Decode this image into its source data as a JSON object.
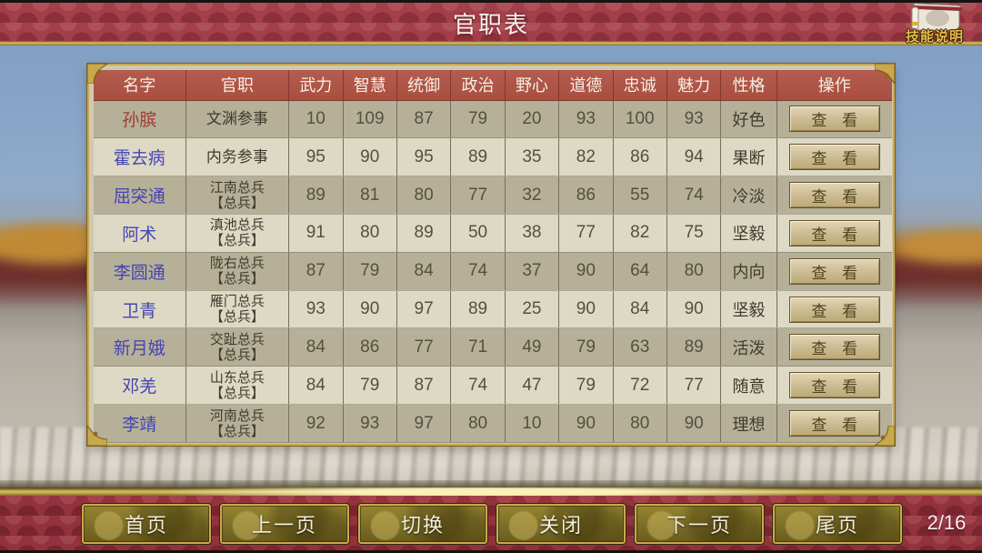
{
  "title_bar": {
    "title": "官职表",
    "skill_button_label": "技能说明"
  },
  "table": {
    "headers": [
      "名字",
      "官职",
      "武力",
      "智慧",
      "统御",
      "政治",
      "野心",
      "道德",
      "忠诚",
      "魅力",
      "性格",
      "操作"
    ],
    "view_button_label": "查 看",
    "rows": [
      {
        "name": "孙膑",
        "name_color": "#a23a32",
        "position": [
          "文渊参事"
        ],
        "stats": [
          10,
          109,
          87,
          79,
          20,
          93,
          100,
          93
        ],
        "personality": "好色"
      },
      {
        "name": "霍去病",
        "name_color": "#4545b2",
        "position": [
          "内务参事"
        ],
        "stats": [
          95,
          90,
          95,
          89,
          35,
          82,
          86,
          94
        ],
        "personality": "果断"
      },
      {
        "name": "屈突通",
        "name_color": "#4545b2",
        "position": [
          "江南总兵",
          "【总兵】"
        ],
        "stats": [
          89,
          81,
          80,
          77,
          32,
          86,
          55,
          74
        ],
        "personality": "冷淡"
      },
      {
        "name": "阿术",
        "name_color": "#4545b2",
        "position": [
          "滇池总兵",
          "【总兵】"
        ],
        "stats": [
          91,
          80,
          89,
          50,
          38,
          77,
          82,
          75
        ],
        "personality": "坚毅"
      },
      {
        "name": "李圆通",
        "name_color": "#4545b2",
        "position": [
          "陇右总兵",
          "【总兵】"
        ],
        "stats": [
          87,
          79,
          84,
          74,
          37,
          90,
          64,
          80
        ],
        "personality": "内向"
      },
      {
        "name": "卫青",
        "name_color": "#4545b2",
        "position": [
          "雁门总兵",
          "【总兵】"
        ],
        "stats": [
          93,
          90,
          97,
          89,
          25,
          90,
          84,
          90
        ],
        "personality": "坚毅"
      },
      {
        "name": "新月娥",
        "name_color": "#4545b2",
        "position": [
          "交趾总兵",
          "【总兵】"
        ],
        "stats": [
          84,
          86,
          77,
          71,
          49,
          79,
          63,
          89
        ],
        "personality": "活泼"
      },
      {
        "name": "邓羌",
        "name_color": "#4545b2",
        "position": [
          "山东总兵",
          "【总兵】"
        ],
        "stats": [
          84,
          79,
          87,
          74,
          47,
          79,
          72,
          77
        ],
        "personality": "随意"
      },
      {
        "name": "李靖",
        "name_color": "#4545b2",
        "position": [
          "河南总兵",
          "【总兵】"
        ],
        "stats": [
          92,
          93,
          97,
          80,
          10,
          90,
          80,
          90
        ],
        "personality": "理想"
      }
    ]
  },
  "footer": {
    "buttons": [
      "首页",
      "上一页",
      "切换",
      "关闭",
      "下一页",
      "尾页"
    ],
    "page_indicator": "2/16"
  },
  "colors": {
    "accent_gold": "#c9a84c",
    "header_red": "#b05a4a",
    "panel_beige": "#cfc9b2",
    "row_dark": "#b6b098",
    "row_light": "#ded9c4",
    "name_red": "#a23a32",
    "name_blue": "#4545b2"
  }
}
